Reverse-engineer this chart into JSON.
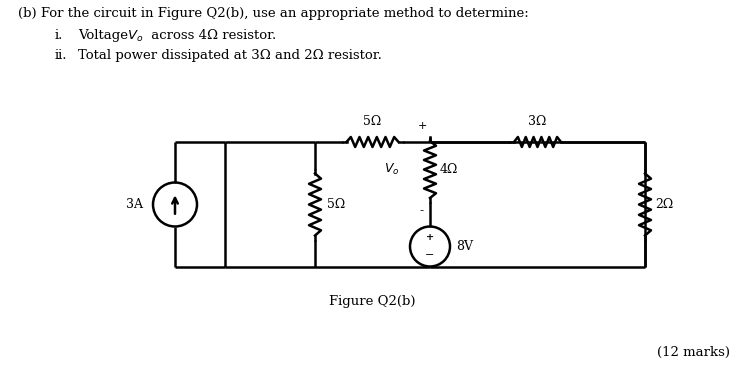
{
  "title": "(b) For the circuit in Figure Q2(b), use an appropriate method to determine:",
  "item_i_prefix": "i.",
  "item_i_text": "Voltage ",
  "item_i_Vo": "V",
  "item_i_suffix": " across 4Ω resistor.",
  "item_ii_prefix": "ii.",
  "item_ii_text": "Total power dissipated at 3Ω and 2Ω resistor.",
  "figure_label": "Figure Q2(b)",
  "marks": "(12 marks)",
  "bg_color": "#ffffff",
  "line_color": "#000000",
  "font_color": "#000000",
  "resistor_5_top_label": "5Ω",
  "resistor_3_label": "3Ω",
  "resistor_5_side_label": "5Ω",
  "resistor_4_label": "4Ω",
  "resistor_2_label": "2Ω",
  "source_3A_label": "3A",
  "source_8V_label": "8V",
  "Vo_label": "V",
  "plus_label": "+",
  "minus_label": "-"
}
